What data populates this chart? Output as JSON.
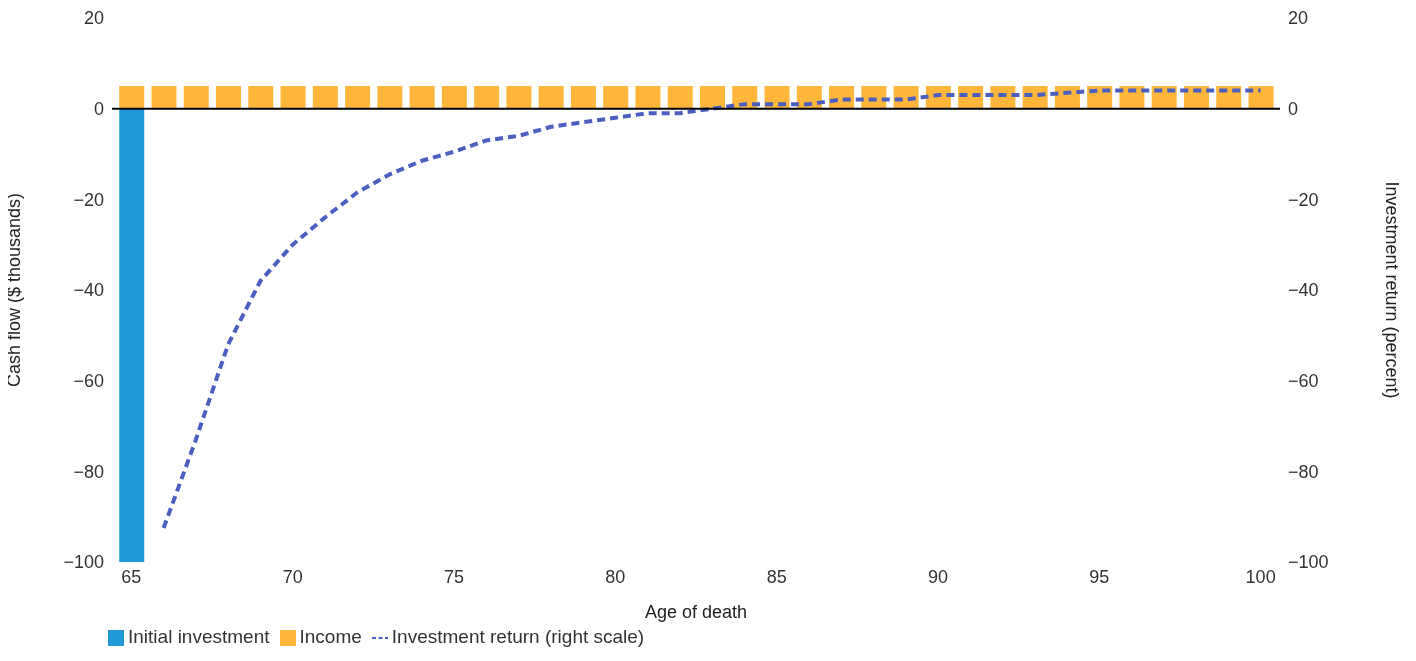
{
  "chart_data": {
    "type": "bar",
    "xlabel": "Age of death",
    "ylabel": "Cash flow ($ thousands)",
    "y2label": "Investment return  (percent)",
    "x": [
      65,
      66,
      67,
      68,
      69,
      70,
      71,
      72,
      73,
      74,
      75,
      76,
      77,
      78,
      79,
      80,
      81,
      82,
      83,
      84,
      85,
      86,
      87,
      88,
      89,
      90,
      91,
      92,
      93,
      94,
      95,
      96,
      97,
      98,
      99,
      100
    ],
    "xlim": [
      64.4,
      100.6
    ],
    "xticks": [
      65,
      70,
      75,
      80,
      85,
      90,
      95,
      100
    ],
    "ylim": [
      -100,
      20
    ],
    "yticks": [
      -100,
      -80,
      -60,
      -40,
      -20,
      0,
      20
    ],
    "y2lim": [
      -100,
      20
    ],
    "y2ticks": [
      -100,
      -80,
      -60,
      -40,
      -20,
      0,
      20
    ],
    "stacked": true,
    "legend": "bottom left",
    "ref_lines": [
      {
        "axis": "y",
        "value": 0,
        "color": "#000000"
      }
    ],
    "series": [
      {
        "name": "Initial investment",
        "color": "#1f9ad6",
        "values": [
          -100,
          null,
          null,
          null,
          null,
          null,
          null,
          null,
          null,
          null,
          null,
          null,
          null,
          null,
          null,
          null,
          null,
          null,
          null,
          null,
          null,
          null,
          null,
          null,
          null,
          null,
          null,
          null,
          null,
          null,
          null,
          null,
          null,
          null,
          null,
          null
        ]
      },
      {
        "name": "Income",
        "color": "#ffb63a",
        "values": [
          5,
          5,
          5,
          5,
          5,
          5,
          5,
          5,
          5,
          5,
          5,
          5,
          5,
          5,
          5,
          5,
          5,
          5,
          5,
          5,
          5,
          5,
          5,
          5,
          5,
          5,
          5,
          5,
          5,
          5,
          5,
          5,
          5,
          5,
          5,
          5
        ]
      },
      {
        "name": "Investment return (right scale)",
        "type": "line",
        "axis": "y2",
        "color": "#4a5fbf",
        "line_style": "dashed",
        "marker": "none",
        "x": [
          66,
          67,
          68,
          69,
          70,
          71,
          72,
          73,
          74,
          75,
          76,
          77,
          78,
          79,
          80,
          81,
          82,
          83,
          84,
          85,
          86,
          87,
          88,
          89,
          90,
          91,
          92,
          93,
          94,
          95,
          96,
          97,
          98,
          99,
          100
        ],
        "values": [
          -92.5,
          -73,
          -52,
          -38,
          -30,
          -24,
          -18.5,
          -14.5,
          -11.5,
          -9.5,
          -7,
          -6,
          -4,
          -3,
          -2,
          -1,
          -1,
          0,
          1,
          1,
          1,
          2,
          2,
          2,
          3,
          3,
          3,
          3,
          3.5,
          4,
          4,
          4,
          4,
          4,
          4
        ]
      }
    ]
  }
}
